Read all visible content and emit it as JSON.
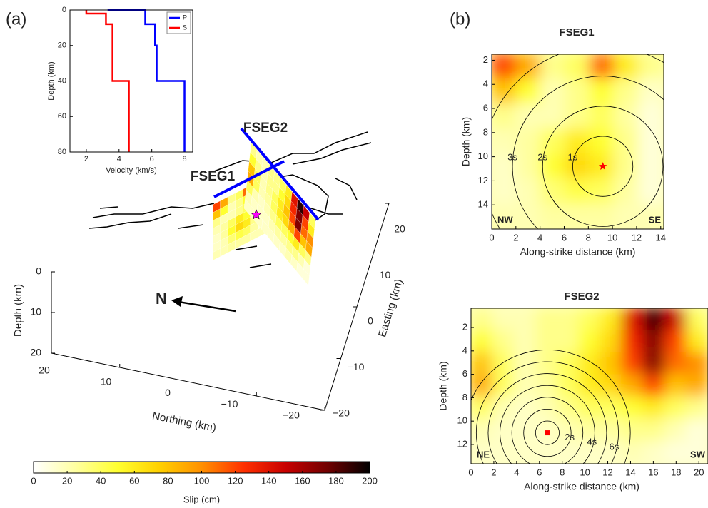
{
  "labels": {
    "a": "(a)",
    "b": "(b)"
  },
  "chart_data": [
    {
      "type": "line",
      "xlabel": "Velocity (km/s)",
      "ylabel": "Depth (km)",
      "xlim": [
        1,
        8.5
      ],
      "xticks": [
        2,
        4,
        6,
        8
      ],
      "ylim": [
        0,
        80
      ],
      "yticks": [
        0,
        20,
        40,
        60,
        80
      ],
      "y_reversed": true,
      "legend": "upper right",
      "series": [
        {
          "name": "P",
          "color": "#0000ff",
          "x": [
            3.3,
            5.6,
            5.6,
            6.2,
            6.2,
            6.3,
            6.3,
            8.0,
            8.0
          ],
          "values": [
            0,
            0,
            8,
            8,
            20,
            20,
            40,
            40,
            80
          ]
        },
        {
          "name": "S",
          "color": "#ff0000",
          "x": [
            2.0,
            2.0,
            3.2,
            3.2,
            3.6,
            3.6,
            4.6,
            4.6
          ],
          "values": [
            0,
            2,
            2,
            8,
            8,
            40,
            40,
            80
          ]
        }
      ]
    },
    {
      "type": "heatmap",
      "title": "FSEG1",
      "xlabel": "Along-strike distance (km)",
      "ylabel": "Depth (km)",
      "xlim": [
        0,
        14.25
      ],
      "xticks": [
        0,
        2,
        4,
        6,
        8,
        10,
        12,
        14
      ],
      "ylim": [
        1.5,
        16
      ],
      "yticks": [
        2,
        4,
        6,
        8,
        10,
        12,
        14
      ],
      "y_reversed": true,
      "corner_labels": [
        "NW",
        "SE"
      ],
      "hypocenter": [
        9.2,
        10.8
      ],
      "contours": [
        "1s",
        "2s",
        "3s"
      ],
      "z": [
        [
          120,
          90,
          30,
          40,
          110,
          60,
          30
        ],
        [
          80,
          50,
          20,
          30,
          50,
          30,
          15
        ],
        [
          30,
          20,
          20,
          30,
          40,
          25,
          10
        ],
        [
          20,
          25,
          40,
          60,
          50,
          30,
          10
        ],
        [
          15,
          25,
          50,
          70,
          60,
          30,
          10
        ],
        [
          15,
          20,
          35,
          45,
          40,
          25,
          10
        ],
        [
          20,
          20,
          25,
          25,
          25,
          20,
          20
        ]
      ]
    },
    {
      "type": "heatmap",
      "title": "FSEG2",
      "xlabel": "Along-strike distance (km)",
      "ylabel": "Depth (km)",
      "xlim": [
        0,
        20.8
      ],
      "xticks": [
        0,
        2,
        4,
        6,
        8,
        10,
        12,
        14,
        16,
        18,
        20
      ],
      "ylim": [
        0.35,
        13.65
      ],
      "yticks": [
        2,
        4,
        6,
        8,
        10,
        12
      ],
      "y_reversed": true,
      "corner_labels": [
        "NE",
        "SW"
      ],
      "hypocenter": [
        6.7,
        11
      ],
      "contours": [
        "2s",
        "4s",
        "6s"
      ],
      "z": [
        [
          30,
          20,
          20,
          30,
          30,
          40,
          60,
          140,
          190,
          150,
          40
        ],
        [
          50,
          30,
          20,
          30,
          30,
          50,
          70,
          130,
          170,
          120,
          60
        ],
        [
          80,
          40,
          20,
          30,
          40,
          60,
          80,
          120,
          170,
          110,
          100
        ],
        [
          90,
          40,
          20,
          25,
          40,
          60,
          70,
          90,
          120,
          80,
          90
        ],
        [
          40,
          20,
          15,
          20,
          30,
          40,
          40,
          50,
          60,
          40,
          30
        ],
        [
          20,
          15,
          15,
          15,
          20,
          25,
          25,
          30,
          30,
          20,
          10
        ],
        [
          15,
          15,
          15,
          15,
          15,
          15,
          15,
          20,
          15,
          10,
          10
        ]
      ]
    },
    {
      "type": "colorbar",
      "xlabel": "Slip (cm)",
      "xlim": [
        0,
        200
      ],
      "xticks": [
        0,
        20,
        40,
        60,
        80,
        100,
        120,
        140,
        160,
        180,
        200
      ],
      "colors": [
        "#ffffff",
        "#ffffa0",
        "#ffff30",
        "#ffd000",
        "#ff9000",
        "#ff3000",
        "#c80000",
        "#700000",
        "#000000"
      ]
    },
    {
      "type": "3d",
      "xlabel": "Northing (km)",
      "ylabel": "Easting (km)",
      "zlabel": "Depth (km)",
      "xticks": [
        20,
        10,
        0,
        {
          "value": -10,
          "label": "−10"
        },
        {
          "value": -20,
          "label": "−20"
        }
      ],
      "yticks": [
        20,
        10,
        0,
        {
          "value": -10,
          "label": "−10"
        },
        {
          "value": -20,
          "label": "−20"
        }
      ],
      "zticks": [
        0,
        10,
        20
      ],
      "xlim": [
        20,
        -20
      ],
      "ylim": [
        -20,
        20
      ],
      "zlim": [
        0,
        20
      ],
      "annotations": [
        "N",
        "FSEG1",
        "FSEG2"
      ]
    }
  ]
}
